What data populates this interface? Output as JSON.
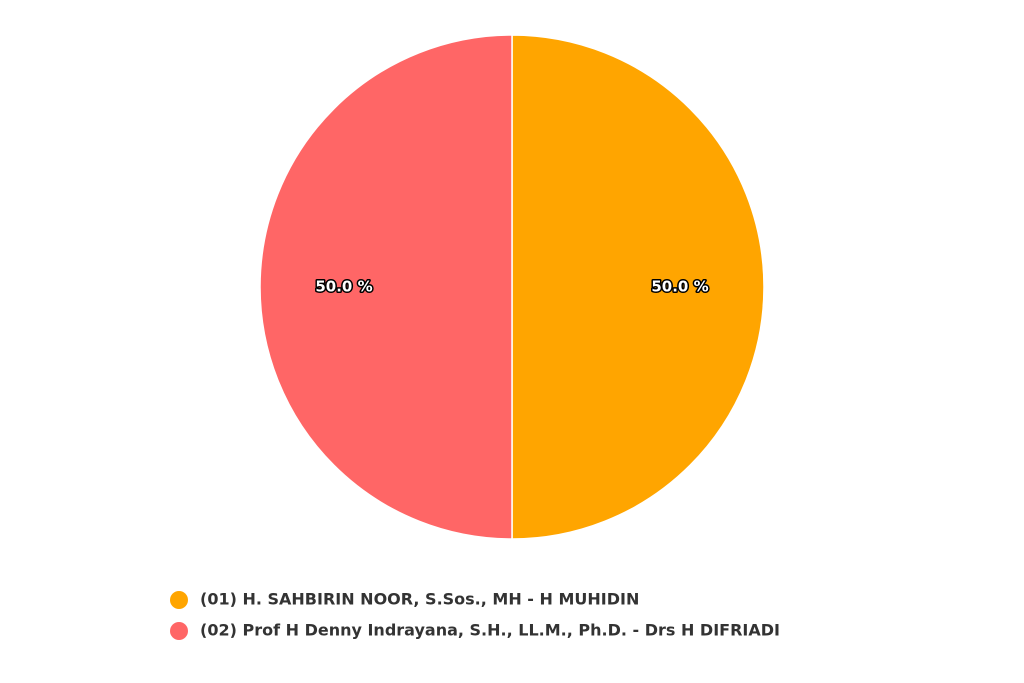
{
  "chart_data": {
    "type": "pie",
    "categories": [
      "(01) H. SAHBIRIN NOOR, S.Sos., MH - H MUHIDIN",
      "(02) Prof H Denny Indrayana, S.H., LL.M., Ph.D. - Drs H DIFRIADI"
    ],
    "values": [
      50,
      50
    ],
    "value_labels": [
      "50.0 %",
      "50.0 %"
    ],
    "colors": [
      "#ffa500",
      "#ff6666"
    ],
    "legend": "bottom"
  }
}
